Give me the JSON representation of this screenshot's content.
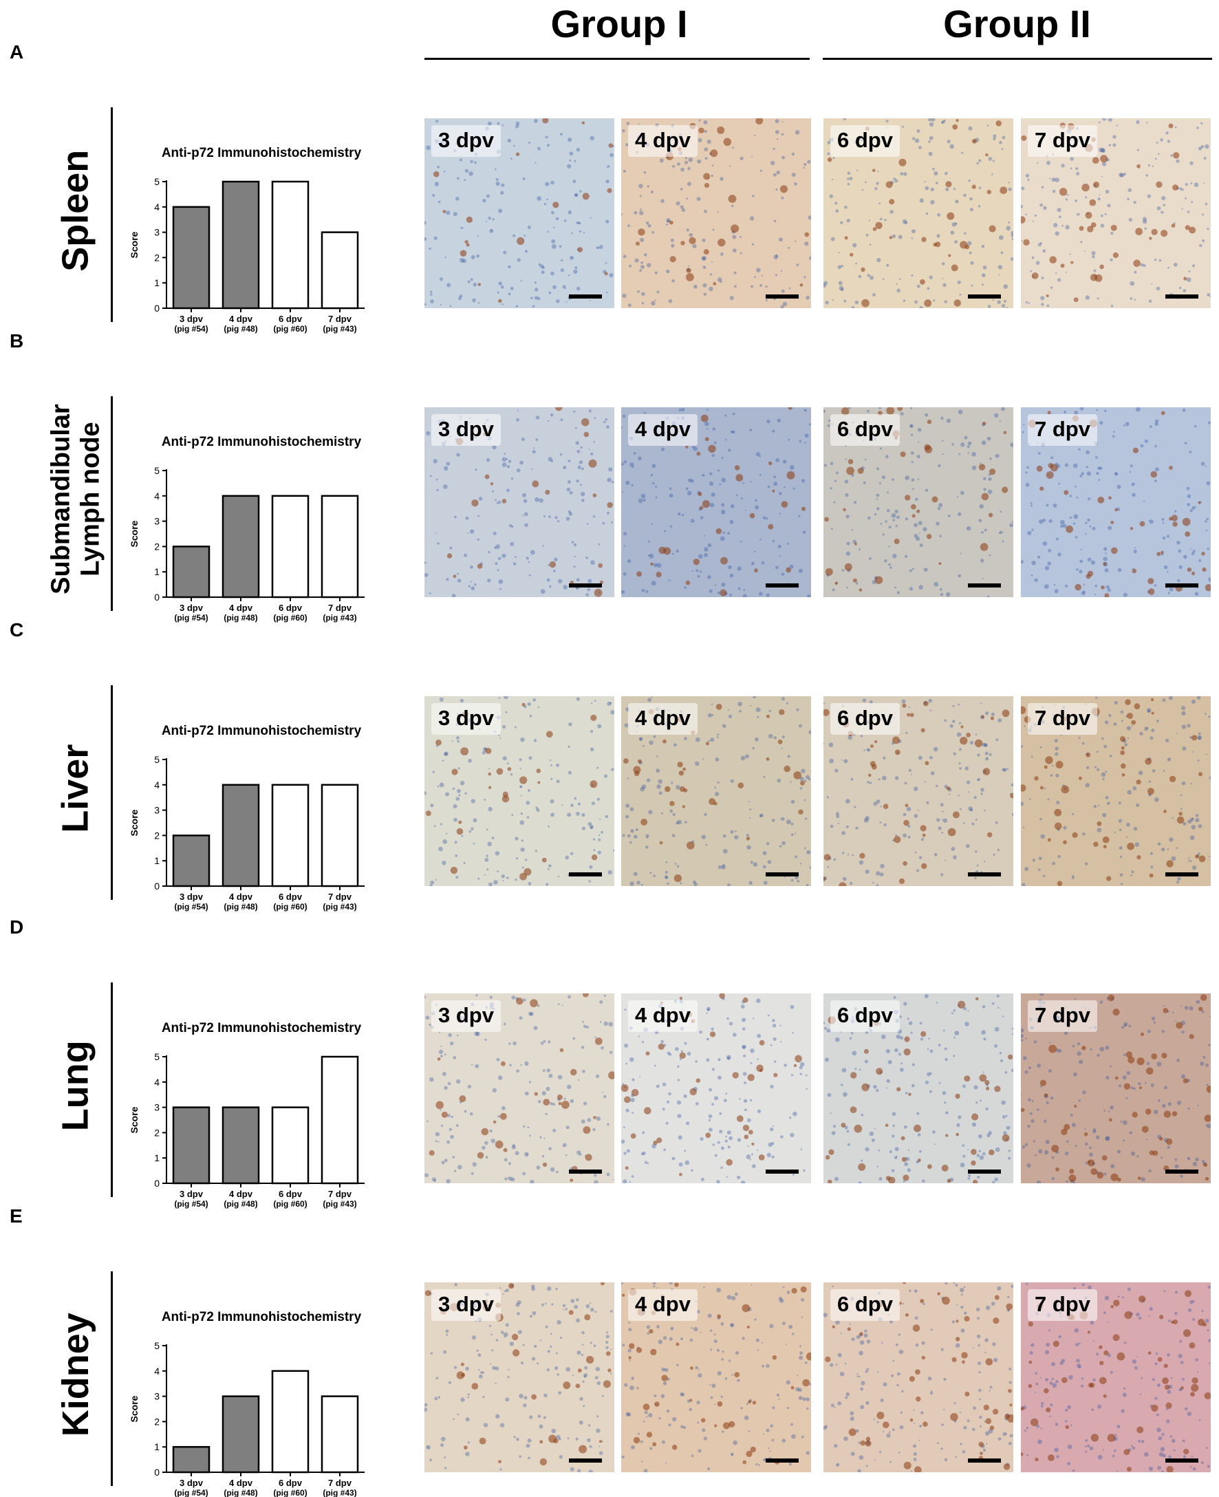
{
  "header": {
    "group1": "Group I",
    "group2": "Group II"
  },
  "panel_letters": [
    "A",
    "B",
    "C",
    "D",
    "E"
  ],
  "row_labels": [
    [
      "Spleen"
    ],
    [
      "Submandibular",
      "Lymph node"
    ],
    [
      "Liver"
    ],
    [
      "Lung"
    ],
    [
      "Kidney"
    ]
  ],
  "image_labels": [
    "3 dpv",
    "4 dpv",
    "6 dpv",
    "7 dpv"
  ],
  "chart_data": [
    {
      "type": "bar",
      "title": "Anti-p72 Immunohistochemistry",
      "xlabel": "",
      "ylabel": "Score",
      "categories": [
        [
          "3 dpv",
          "(pig #54)"
        ],
        [
          "4 dpv",
          "(pig #48)"
        ],
        [
          "6 dpv",
          "(pig #60)"
        ],
        [
          "7 dpv",
          "(pig #43)"
        ]
      ],
      "values": [
        4,
        5,
        5,
        3
      ],
      "ylim": [
        0,
        5
      ],
      "yticks": [
        0,
        1,
        2,
        3,
        4,
        5
      ],
      "bar_fills": [
        "#7f7f7f",
        "#7f7f7f",
        "#ffffff",
        "#ffffff"
      ],
      "grid": false
    },
    {
      "type": "bar",
      "title": "Anti-p72 Immunohistochemistry",
      "xlabel": "",
      "ylabel": "Score",
      "categories": [
        [
          "3 dpv",
          "(pig #54)"
        ],
        [
          "4 dpv",
          "(pig #48)"
        ],
        [
          "6 dpv",
          "(pig #60)"
        ],
        [
          "7 dpv",
          "(pig #43)"
        ]
      ],
      "values": [
        2,
        4,
        4,
        4
      ],
      "ylim": [
        0,
        5
      ],
      "yticks": [
        0,
        1,
        2,
        3,
        4,
        5
      ],
      "bar_fills": [
        "#7f7f7f",
        "#7f7f7f",
        "#ffffff",
        "#ffffff"
      ],
      "grid": false
    },
    {
      "type": "bar",
      "title": "Anti-p72 Immunohistochemistry",
      "xlabel": "",
      "ylabel": "Score",
      "categories": [
        [
          "3 dpv",
          "(pig #54)"
        ],
        [
          "4 dpv",
          "(pig #48)"
        ],
        [
          "6 dpv",
          "(pig #60)"
        ],
        [
          "7 dpv",
          "(pig #43)"
        ]
      ],
      "values": [
        2,
        4,
        4,
        4
      ],
      "ylim": [
        0,
        5
      ],
      "yticks": [
        0,
        1,
        2,
        3,
        4,
        5
      ],
      "bar_fills": [
        "#7f7f7f",
        "#7f7f7f",
        "#ffffff",
        "#ffffff"
      ],
      "grid": false
    },
    {
      "type": "bar",
      "title": "Anti-p72 Immunohistochemistry",
      "xlabel": "",
      "ylabel": "Score",
      "categories": [
        [
          "3 dpv",
          "(pig #54)"
        ],
        [
          "4 dpv",
          "(pig #48)"
        ],
        [
          "6 dpv",
          "(pig #60)"
        ],
        [
          "7 dpv",
          "(pig #43)"
        ]
      ],
      "values": [
        3,
        3,
        3,
        5
      ],
      "ylim": [
        0,
        5
      ],
      "yticks": [
        0,
        1,
        2,
        3,
        4,
        5
      ],
      "bar_fills": [
        "#7f7f7f",
        "#7f7f7f",
        "#ffffff",
        "#ffffff"
      ],
      "grid": false
    },
    {
      "type": "bar",
      "title": "Anti-p72 Immunohistochemistry",
      "xlabel": "",
      "ylabel": "Score",
      "categories": [
        [
          "3 dpv",
          "(pig #54)"
        ],
        [
          "4 dpv",
          "(pig #48)"
        ],
        [
          "6 dpv",
          "(pig #60)"
        ],
        [
          "7 dpv",
          "(pig #43)"
        ]
      ],
      "values": [
        1,
        3,
        4,
        3
      ],
      "ylim": [
        0,
        5
      ],
      "yticks": [
        0,
        1,
        2,
        3,
        4,
        5
      ],
      "bar_fills": [
        "#7f7f7f",
        "#7f7f7f",
        "#ffffff",
        "#ffffff"
      ],
      "grid": false
    }
  ],
  "micrograph_tints": [
    [
      "#c7d3df",
      "#e4cdb4",
      "#e6d7bd",
      "#eadccb"
    ],
    [
      "#c8d0dc",
      "#aab7cf",
      "#c9c7c0",
      "#b6c4dc"
    ],
    [
      "#dcdcd0",
      "#d3c8b2",
      "#d8ccba",
      "#d6c0a4"
    ],
    [
      "#e2dcd0",
      "#e2e2e0",
      "#d6d8d8",
      "#c8a898"
    ],
    [
      "#e4d6c4",
      "#e2c8ae",
      "#e2cab8",
      "#d8aab0"
    ]
  ],
  "stain_colors": [
    "#8a3a10",
    "#2f4f9a"
  ]
}
